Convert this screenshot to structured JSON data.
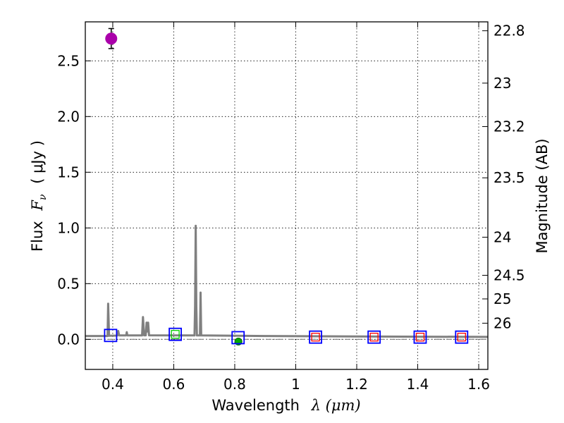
{
  "chart_data": {
    "type": "scatter",
    "xlabel": "Wavelength",
    "xlabel_math": "λ (μm)",
    "ylabel": "Flux",
    "ylabel_math": "F",
    "ylabel_math_sub": "ν",
    "ylabel_unit": "( μJy )",
    "y2label": "Magnitude (AB)",
    "xlim": [
      0.31,
      1.63
    ],
    "ylim": [
      -0.27,
      2.85
    ],
    "grid": true,
    "x_ticks": [
      0.4,
      0.6,
      0.8,
      1.0,
      1.2,
      1.4,
      1.6
    ],
    "x_tick_labels": [
      "0.4",
      "0.6",
      "0.8",
      "1",
      "1.2",
      "1.4",
      "1.6"
    ],
    "y_ticks": [
      0.0,
      0.5,
      1.0,
      1.5,
      2.0,
      2.5
    ],
    "y_tick_labels": [
      "0.0",
      "0.5",
      "1.0",
      "1.5",
      "2.0",
      "2.5"
    ],
    "y2_ticks": [
      {
        "label": "22.8",
        "flux": 2.77
      },
      {
        "label": "23",
        "flux": 2.3
      },
      {
        "label": "23.2",
        "flux": 1.91
      },
      {
        "label": "23.5",
        "flux": 1.45
      },
      {
        "label": "24",
        "flux": 0.917
      },
      {
        "label": "24.5",
        "flux": 0.575
      },
      {
        "label": "25",
        "flux": 0.363
      },
      {
        "label": "26",
        "flux": 0.145
      }
    ],
    "series": [
      {
        "name": "model spectrum",
        "kind": "line",
        "color": "#808080",
        "points": [
          [
            0.31,
            0.03
          ],
          [
            0.383,
            0.03
          ],
          [
            0.385,
            0.32
          ],
          [
            0.388,
            0.032
          ],
          [
            0.415,
            0.034
          ],
          [
            0.418,
            0.075
          ],
          [
            0.421,
            0.035
          ],
          [
            0.444,
            0.035
          ],
          [
            0.446,
            0.065
          ],
          [
            0.448,
            0.035
          ],
          [
            0.496,
            0.035
          ],
          [
            0.499,
            0.2
          ],
          [
            0.503,
            0.036
          ],
          [
            0.508,
            0.036
          ],
          [
            0.511,
            0.15
          ],
          [
            0.513,
            0.07
          ],
          [
            0.516,
            0.15
          ],
          [
            0.519,
            0.036
          ],
          [
            0.668,
            0.035
          ],
          [
            0.67,
            0.3
          ],
          [
            0.672,
            1.02
          ],
          [
            0.674,
            0.3
          ],
          [
            0.676,
            0.035
          ],
          [
            0.686,
            0.035
          ],
          [
            0.688,
            0.42
          ],
          [
            0.69,
            0.035
          ],
          [
            0.9,
            0.03
          ],
          [
            1.2,
            0.026
          ],
          [
            1.63,
            0.022
          ]
        ]
      },
      {
        "name": "zero line",
        "kind": "dashdot",
        "color": "#808080",
        "points": [
          [
            0.31,
            0.0
          ],
          [
            1.63,
            0.0
          ]
        ]
      },
      {
        "name": "observed flux",
        "kind": "point",
        "color": "#aa00aa",
        "points": [
          {
            "x": 0.395,
            "y": 2.7,
            "err": 0.09
          }
        ]
      },
      {
        "name": "upper limits",
        "kind": "point",
        "color": "#00aa00",
        "points": [
          {
            "x": 0.812,
            "y": -0.02
          }
        ]
      },
      {
        "name": "model photometry",
        "kind": "square",
        "color": "#0000ff",
        "points": [
          {
            "x": 0.393,
            "y": 0.035
          },
          {
            "x": 0.605,
            "y": 0.045
          },
          {
            "x": 0.811,
            "y": 0.015
          },
          {
            "x": 1.065,
            "y": 0.02
          },
          {
            "x": 1.257,
            "y": 0.02
          },
          {
            "x": 1.408,
            "y": 0.02
          },
          {
            "x": 1.544,
            "y": 0.02
          }
        ]
      },
      {
        "name": "inner markers",
        "kind": "square",
        "color": "#ff0000",
        "points": [
          {
            "x": 1.065,
            "y": 0.02
          },
          {
            "x": 1.257,
            "y": 0.02
          },
          {
            "x": 1.408,
            "y": 0.02
          },
          {
            "x": 1.544,
            "y": 0.02
          }
        ]
      },
      {
        "name": "inner marker green",
        "kind": "square",
        "color": "#00cc00",
        "points": [
          {
            "x": 0.605,
            "y": 0.045
          }
        ]
      }
    ]
  }
}
